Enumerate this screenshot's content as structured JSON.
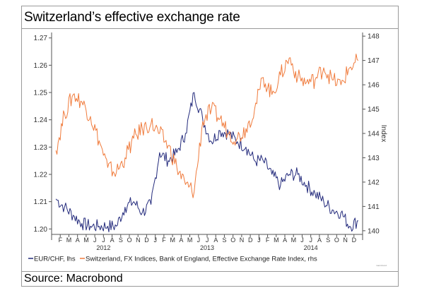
{
  "title": "Switzerland’s effective exchange rate",
  "source": "Source: Macrobond",
  "colors": {
    "eurchf": "#232a7c",
    "fx_index": "#f07b3c",
    "frame": "#9a9a9a",
    "axis": "#555555"
  },
  "chart_data": {
    "type": "line",
    "title": "Switzerland’s effective exchange rate",
    "x_range": [
      "2012-01",
      "2014-12"
    ],
    "x_ticks": {
      "months": [
        "F",
        "M",
        "A",
        "M",
        "J",
        "J",
        "A",
        "S",
        "O",
        "N",
        "D",
        "J",
        "F",
        "M",
        "A",
        "M",
        "J",
        "J",
        "A",
        "S",
        "O",
        "N",
        "D",
        "J",
        "F",
        "M",
        "A",
        "M",
        "J",
        "J",
        "A",
        "S",
        "O",
        "N",
        "D"
      ],
      "years": [
        "2012",
        "2013",
        "2014"
      ]
    },
    "y_left": {
      "label": "",
      "ylim": [
        1.198,
        1.272
      ],
      "ticks": [
        "1.27",
        "1.26",
        "1.25",
        "1.24",
        "1.23",
        "1.22",
        "1.21",
        "1.20"
      ],
      "tick_values": [
        1.27,
        1.26,
        1.25,
        1.24,
        1.23,
        1.22,
        1.21,
        1.2
      ]
    },
    "y_right": {
      "label": "Index",
      "ylim": [
        139.85,
        148.15
      ],
      "ticks": [
        "148",
        "147",
        "146",
        "145",
        "144",
        "143",
        "142",
        "141",
        "140"
      ],
      "tick_values": [
        148,
        147,
        146,
        145,
        144,
        143,
        142,
        141,
        140
      ]
    },
    "grid": false,
    "legend": "bottom",
    "series": [
      {
        "name": "EUR/CHF, lhs",
        "axis": "left",
        "color": "#232a7c",
        "x": [
          "2012-01",
          "2012-02",
          "2012-03",
          "2012-04",
          "2012-05",
          "2012-06",
          "2012-07",
          "2012-08",
          "2012-09",
          "2012-10",
          "2012-11",
          "2012-12",
          "2013-01",
          "2013-02",
          "2013-03",
          "2013-04",
          "2013-05",
          "2013-06",
          "2013-07",
          "2013-08",
          "2013-09",
          "2013-10",
          "2013-11",
          "2013-12",
          "2014-01",
          "2014-02",
          "2014-03",
          "2014-04",
          "2014-05",
          "2014-06",
          "2014-07",
          "2014-08",
          "2014-09",
          "2014-10",
          "2014-11",
          "2014-12"
        ],
        "values": [
          1.211,
          1.208,
          1.205,
          1.202,
          1.201,
          1.201,
          1.201,
          1.201,
          1.208,
          1.21,
          1.206,
          1.209,
          1.228,
          1.225,
          1.228,
          1.235,
          1.25,
          1.24,
          1.232,
          1.236,
          1.235,
          1.232,
          1.23,
          1.225,
          1.225,
          1.22,
          1.216,
          1.22,
          1.22,
          1.216,
          1.213,
          1.21,
          1.207,
          1.206,
          1.201,
          1.203
        ]
      },
      {
        "name": "Switzerland, FX Indices, Bank of England, Effective Exchange Rate Index, rhs",
        "axis": "right",
        "color": "#f07b3c",
        "x": [
          "2012-01",
          "2012-02",
          "2012-03",
          "2012-04",
          "2012-05",
          "2012-06",
          "2012-07",
          "2012-08",
          "2012-09",
          "2012-10",
          "2012-11",
          "2012-12",
          "2013-01",
          "2013-02",
          "2013-03",
          "2013-04",
          "2013-05",
          "2013-06",
          "2013-07",
          "2013-08",
          "2013-09",
          "2013-10",
          "2013-11",
          "2013-12",
          "2014-01",
          "2014-02",
          "2014-03",
          "2014-04",
          "2014-05",
          "2014-06",
          "2014-07",
          "2014-08",
          "2014-09",
          "2014-10",
          "2014-11",
          "2014-12"
        ],
        "values": [
          143.3,
          144.8,
          145.6,
          145.3,
          144.7,
          143.7,
          142.6,
          142.4,
          143.0,
          143.8,
          144.2,
          144.4,
          144.0,
          143.5,
          142.6,
          141.9,
          141.6,
          144.5,
          145.0,
          144.6,
          144.0,
          143.8,
          144.2,
          145.0,
          146.3,
          145.6,
          146.4,
          147.1,
          146.3,
          146.1,
          146.2,
          146.7,
          146.2,
          146.0,
          146.7,
          147.0
        ]
      }
    ]
  },
  "legend": {
    "eurchf_label": "EUR/CHF, lhs",
    "fx_label": "Switzerland, FX Indices, Bank of England, Effective Exchange Rate Index, rhs"
  },
  "credit": "macrobond"
}
